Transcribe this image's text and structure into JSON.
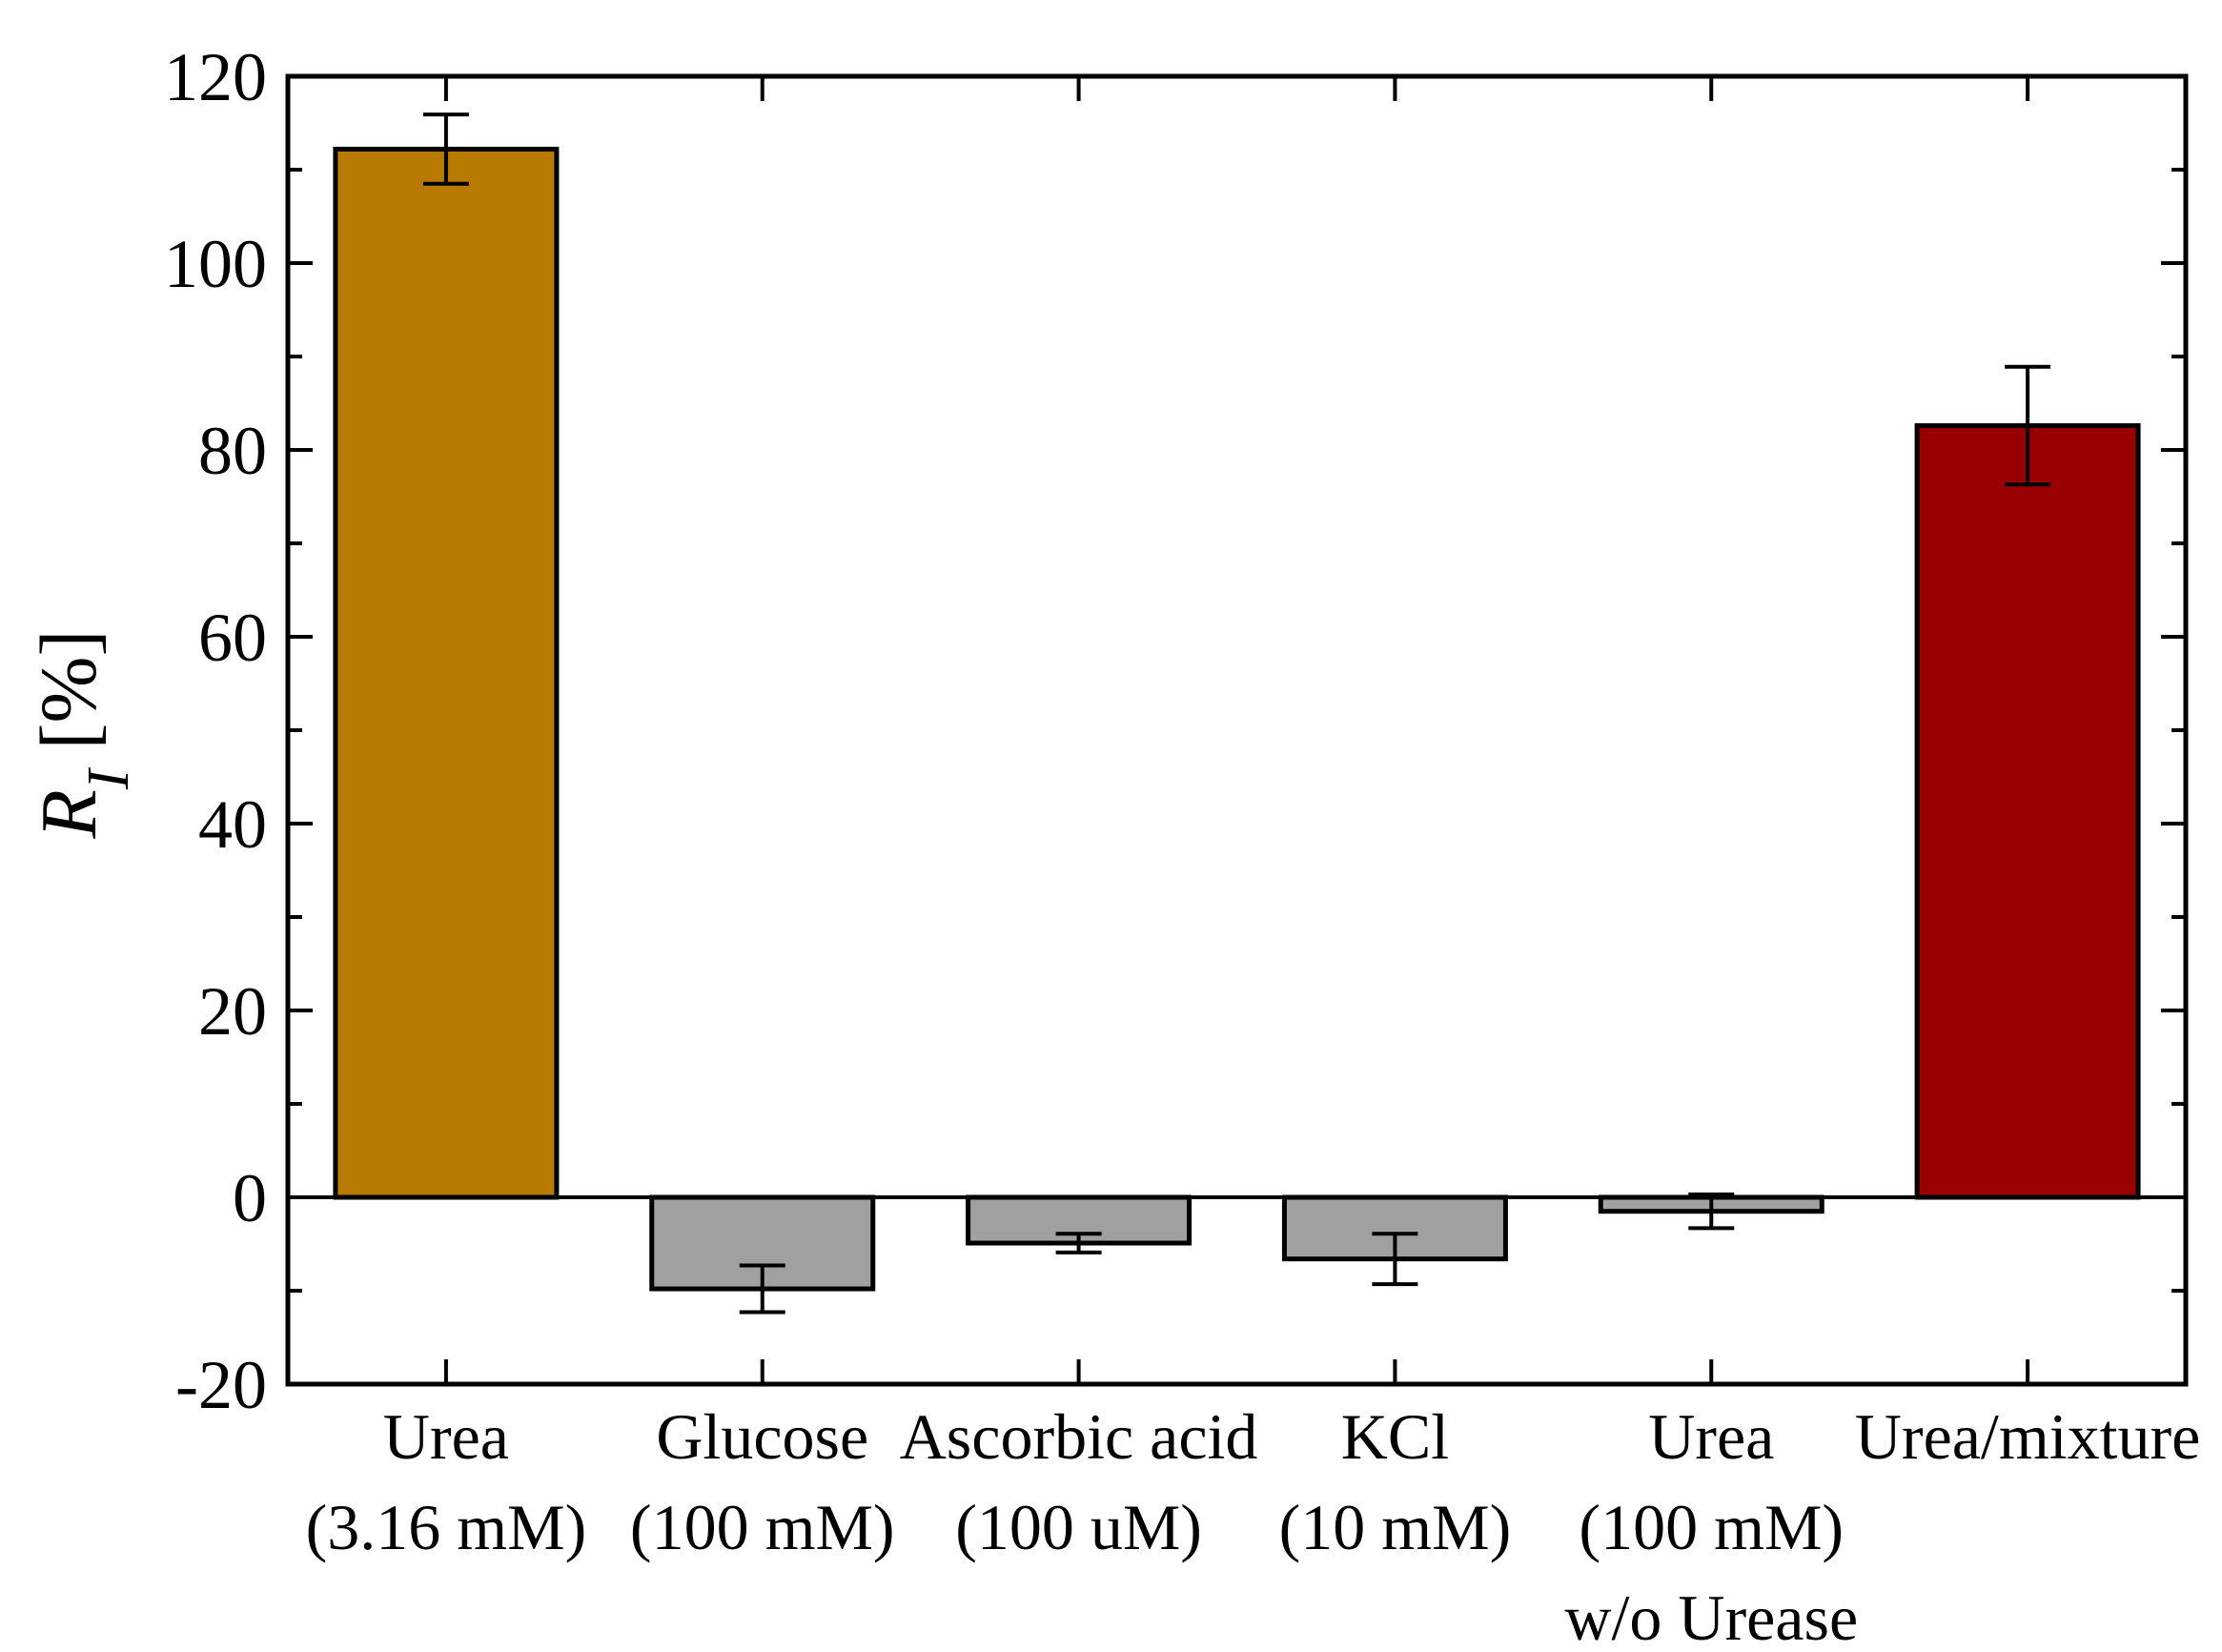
{
  "chart_data": {
    "type": "bar",
    "ylabel_symbol": "R",
    "ylabel_subscript": "I",
    "ylabel_unit": " [%]",
    "ylim": [
      -20,
      120
    ],
    "yticks": [
      -20,
      0,
      20,
      40,
      60,
      80,
      100,
      120
    ],
    "ytick_labels": [
      "-20",
      "0",
      "20",
      "40",
      "60",
      "80",
      "100",
      "120"
    ],
    "categories": [
      {
        "lines": [
          "Urea",
          "(3.16 mM)"
        ]
      },
      {
        "lines": [
          "Glucose",
          "(100 mM)"
        ]
      },
      {
        "lines": [
          "Ascorbic acid",
          "(100 uM)"
        ]
      },
      {
        "lines": [
          "KCl",
          "(10 mM)"
        ]
      },
      {
        "lines": [
          "Urea",
          "(100 mM)",
          "w/o Urease"
        ]
      },
      {
        "lines": [
          "Urea/mixture"
        ]
      }
    ],
    "values": [
      112.2,
      -9.8,
      -4.9,
      -6.6,
      -1.5,
      82.6
    ],
    "errors": [
      3.7,
      2.5,
      1.0,
      2.7,
      1.8,
      6.3
    ],
    "colors": [
      "#b87a00",
      "#a0a0a0",
      "#a0a0a0",
      "#a0a0a0",
      "#a0a0a0",
      "#990000"
    ],
    "grid": false
  }
}
